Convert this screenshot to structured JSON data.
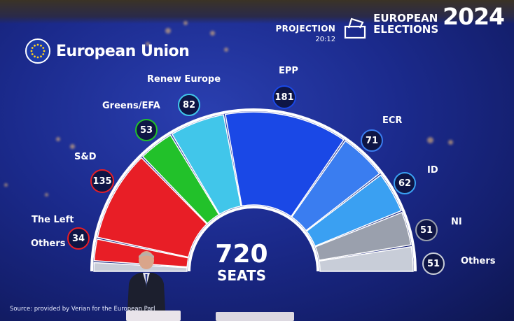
{
  "header": {
    "logo_text": "European Union",
    "projection_label": "PROJECTION",
    "projection_time": "20:12",
    "title_line1": "EUROPEAN",
    "title_line2": "ELECTIONS",
    "year": "2024"
  },
  "source_text": "Source: provided by Verian for the European Parl",
  "colors": {
    "epp": "#1a48e6",
    "ecr": "#3a7df0",
    "id": "#3aa0f2",
    "ni": "#9aa0ad",
    "others": "#c8cdd8",
    "sd": "#e81e26",
    "left": "#e81e26",
    "greens": "#22c12a",
    "renew": "#41c6ea"
  },
  "chart_data": {
    "type": "hemicycle",
    "total": 720,
    "total_number": "720",
    "total_label": "SEATS",
    "seats": [
      {
        "party": "Others",
        "seats": 0
      },
      {
        "party": "The Left",
        "seats": 34
      },
      {
        "party": "S&D",
        "seats": 135
      },
      {
        "party": "Greens/EFA",
        "seats": 53
      },
      {
        "party": "Renew Europe",
        "seats": 82
      },
      {
        "party": "EPP",
        "seats": 181
      },
      {
        "party": "ECR",
        "seats": 71
      },
      {
        "party": "ID",
        "seats": 62
      },
      {
        "party": "NI",
        "seats": 51
      },
      {
        "party": "Others",
        "seats": 51
      }
    ],
    "labels": [
      {
        "name": "Renew Europe",
        "value": "82"
      },
      {
        "name": "EPP",
        "value": "181"
      },
      {
        "name": "Greens/EFA",
        "value": "53"
      },
      {
        "name": "ECR",
        "value": "71"
      },
      {
        "name": "S&D",
        "value": "135"
      },
      {
        "name": "ID",
        "value": "62"
      },
      {
        "name": "The Left",
        "value": "34"
      },
      {
        "name": "NI",
        "value": "51"
      },
      {
        "name": "Others",
        "value": "51"
      },
      {
        "name": "Others",
        "value": ""
      }
    ]
  }
}
